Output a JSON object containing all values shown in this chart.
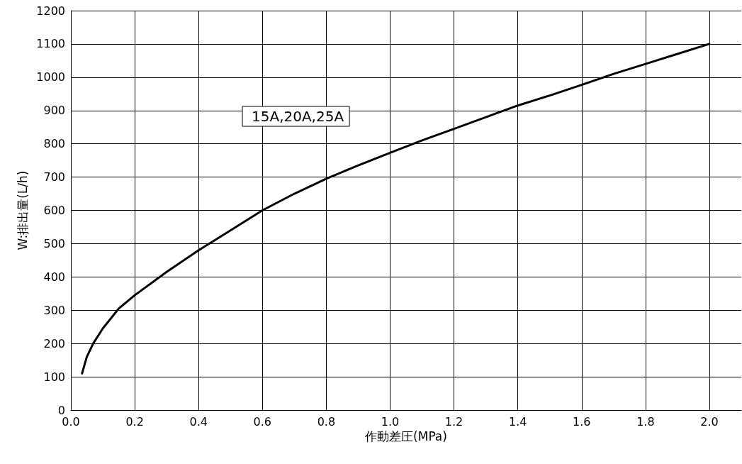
{
  "chart_data": {
    "type": "line",
    "xlabel": "作動差圧(MPa)",
    "ylabel": "W:排出量(L/h)",
    "xlim": [
      0,
      2.1
    ],
    "xticks": [
      {
        "value": 0,
        "label": "0.0"
      },
      {
        "value": 0.2,
        "label": "0.2"
      },
      {
        "value": 0.4,
        "label": "0.4"
      },
      {
        "value": 0.6,
        "label": "0.6"
      },
      {
        "value": 0.8,
        "label": "0.8"
      },
      {
        "value": 1,
        "label": "1.0"
      },
      {
        "value": 1.2,
        "label": "1.2"
      },
      {
        "value": 1.4,
        "label": "1.4"
      },
      {
        "value": 1.6,
        "label": "1.6"
      },
      {
        "value": 1.8,
        "label": "1.8"
      },
      {
        "value": 2,
        "label": "2.0"
      }
    ],
    "ylim": [
      0,
      1200
    ],
    "yticks": [
      0,
      100,
      200,
      300,
      400,
      500,
      600,
      700,
      800,
      900,
      1000,
      1100,
      1200
    ],
    "grid": true,
    "legend": "top left",
    "marker": "none",
    "line_style": "solid",
    "x": [
      0.035,
      0.05,
      0.07,
      0.1,
      0.15,
      0.2,
      0.3,
      0.4,
      0.5,
      0.6,
      0.7,
      0.8,
      0.9,
      1.0,
      1.1,
      1.2,
      1.3,
      1.4,
      1.5,
      1.6,
      1.7,
      1.8,
      1.9,
      2.0
    ],
    "series": [
      {
        "name": "15A,20A,25A",
        "color": "#000000",
        "values": [
          110,
          160,
          200,
          245,
          305,
          345,
          415,
          480,
          540,
          600,
          650,
          695,
          735,
          773,
          810,
          845,
          880,
          915,
          945,
          977,
          1010,
          1040,
          1070,
          1100
        ]
      }
    ]
  }
}
